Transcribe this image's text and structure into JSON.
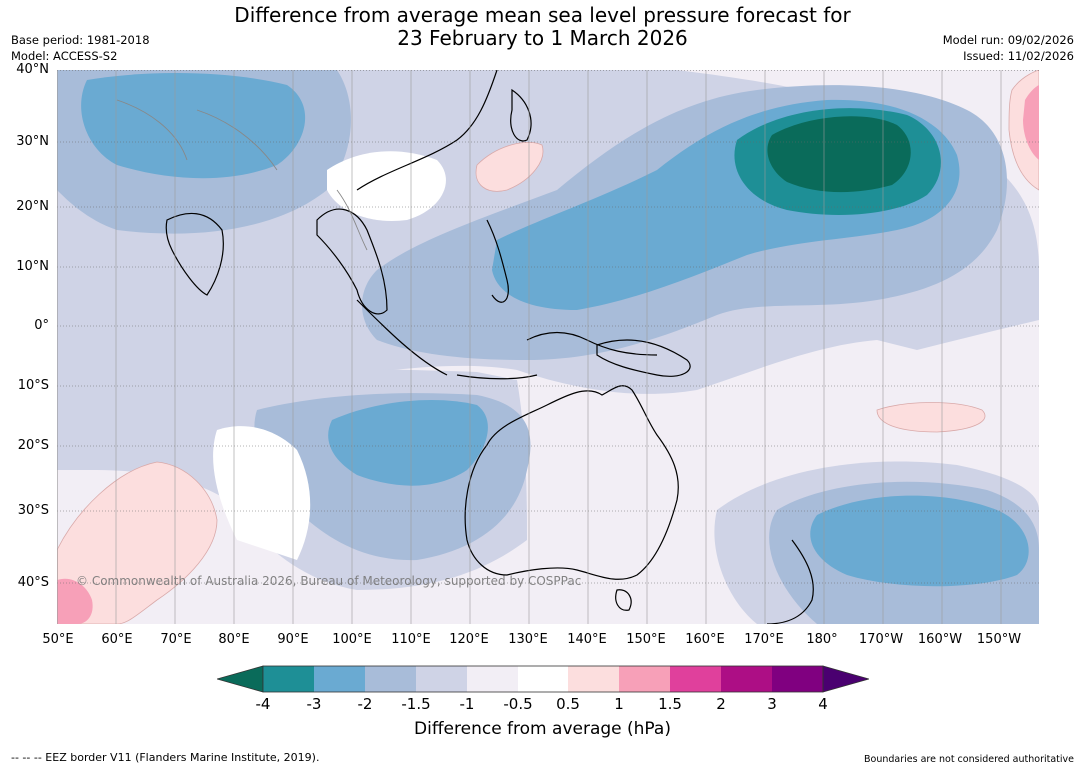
{
  "title_line1": "Difference from average mean sea level pressure forecast for",
  "title_line2": "23 February to 1 March 2026",
  "base_period": "Base period: 1981-2018",
  "model": "Model: ACCESS-S2",
  "model_run": "Model run: 09/02/2026",
  "issued": "Issued: 11/02/2026",
  "copyright": "© Commonwealth of Australia 2026, Bureau of Meteorology, supported by COSPPac",
  "lat_labels": [
    "40°N",
    "30°N",
    "20°N",
    "10°N",
    "0°",
    "10°S",
    "20°S",
    "30°S",
    "40°S"
  ],
  "lon_labels": [
    "50°E",
    "60°E",
    "70°E",
    "80°E",
    "90°E",
    "100°E",
    "110°E",
    "120°E",
    "130°E",
    "140°E",
    "150°E",
    "160°E",
    "170°E",
    "180°",
    "170°W",
    "160°W",
    "150°W"
  ],
  "colorbar": {
    "ticks": [
      "-4",
      "-3",
      "-2",
      "-1.5",
      "-1",
      "-0.5",
      "0.5",
      "1",
      "1.5",
      "2",
      "3",
      "4"
    ],
    "colors": [
      "#0a6b5a",
      "#1e8f96",
      "#6aaad2",
      "#a8bcd9",
      "#cfd3e6",
      "#f2eef5",
      "#ffffff",
      "#fcdede",
      "#f7a0b8",
      "#e0409c",
      "#ad0e85",
      "#800080",
      "#4a0070"
    ],
    "label": "Difference from average (hPa)"
  },
  "footer_left": "--  --  -- EEZ border V11 (Flanders Marine Institute, 2019).",
  "footer_right": "Boundaries are not considered authoritative"
}
